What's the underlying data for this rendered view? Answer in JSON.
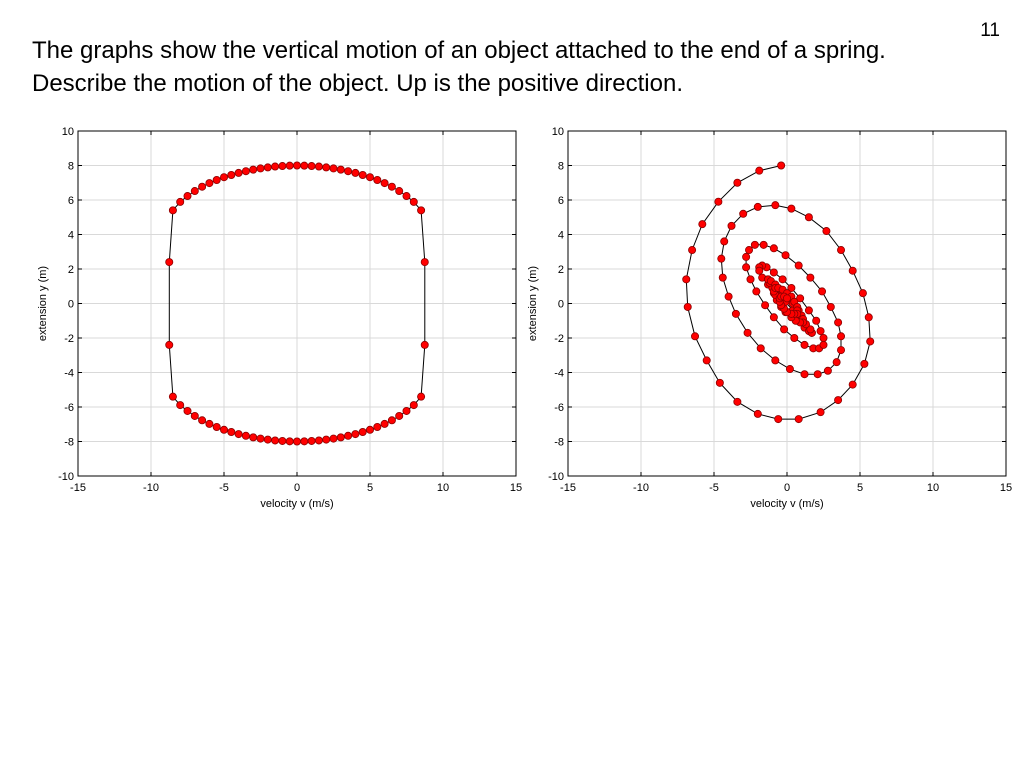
{
  "slide": {
    "number": "11",
    "text": "The graphs show the vertical motion of an object attached to the end of a spring. Describe the motion of the object. Up is the positive direction."
  },
  "colors": {
    "marker": "#ff0000",
    "line": "#000000",
    "grid": "#d9d9d9"
  },
  "chart_data": [
    {
      "type": "scatter",
      "title": "",
      "xlabel": "velocity  v  (m/s)",
      "ylabel": "extension  y  (m)",
      "xlim": [
        -15,
        15
      ],
      "ylim": [
        -10,
        10
      ],
      "xticks": [
        -15,
        -10,
        -5,
        0,
        5,
        10,
        15
      ],
      "yticks": [
        -10,
        -8,
        -6,
        -4,
        -2,
        0,
        2,
        4,
        6,
        8,
        10
      ],
      "grid": true,
      "legend": "none",
      "series": [
        {
          "marker": "filled-circle",
          "connected": true,
          "x": [
            0,
            -0.5,
            -1,
            -1.5,
            -2,
            -2.5,
            -3,
            -3.5,
            -4,
            -4.5,
            -5,
            -5.5,
            -6,
            -6.5,
            -7,
            -7.5,
            -8,
            -8.5,
            -8.75,
            -8.75,
            -8.5,
            -8,
            -7.5,
            -7,
            -6.5,
            -6,
            -5.5,
            -5,
            -4.5,
            -4,
            -3.5,
            -3,
            -2.5,
            -2,
            -1.5,
            -1,
            -0.5,
            0,
            0.5,
            1,
            1.5,
            2,
            2.5,
            3,
            3.5,
            4,
            4.5,
            5,
            5.5,
            6,
            6.5,
            7,
            7.5,
            8,
            8.5,
            8.75,
            8.75,
            8.5,
            8,
            7.5,
            7,
            6.5,
            6,
            5.5,
            5,
            4.5,
            4,
            3.5,
            3,
            2.5,
            2,
            1.5,
            1,
            0.5
          ],
          "y": [
            8,
            7.99,
            7.97,
            7.94,
            7.89,
            7.83,
            7.76,
            7.67,
            7.57,
            7.45,
            7.32,
            7.16,
            6.98,
            6.77,
            6.52,
            6.23,
            5.89,
            5.4,
            2.4,
            -2.4,
            -5.4,
            -5.89,
            -6.23,
            -6.52,
            -6.77,
            -6.98,
            -7.16,
            -7.32,
            -7.45,
            -7.57,
            -7.67,
            -7.76,
            -7.83,
            -7.89,
            -7.94,
            -7.97,
            -7.99,
            -8,
            -7.99,
            -7.97,
            -7.94,
            -7.89,
            -7.83,
            -7.76,
            -7.67,
            -7.57,
            -7.45,
            -7.32,
            -7.16,
            -6.98,
            -6.77,
            -6.52,
            -6.23,
            -5.89,
            -5.4,
            -2.4,
            2.4,
            5.4,
            5.89,
            6.23,
            6.52,
            6.77,
            6.98,
            7.16,
            7.32,
            7.45,
            7.57,
            7.67,
            7.76,
            7.83,
            7.89,
            7.94,
            7.97,
            7.99
          ]
        }
      ]
    },
    {
      "type": "scatter",
      "title": "",
      "xlabel": "velocity  v  (m/s)",
      "ylabel": "extension  y  (m)",
      "xlim": [
        -15,
        15
      ],
      "ylim": [
        -10,
        10
      ],
      "xticks": [
        -15,
        -10,
        -5,
        0,
        5,
        10,
        15
      ],
      "yticks": [
        -10,
        -8,
        -6,
        -4,
        -2,
        0,
        2,
        4,
        6,
        8,
        10
      ],
      "grid": true,
      "legend": "none",
      "series": [
        {
          "marker": "filled-circle",
          "connected": true,
          "x": [
            -0.4,
            -1.9,
            -3.4,
            -4.7,
            -5.8,
            -6.5,
            -6.9,
            -6.8,
            -6.3,
            -5.5,
            -4.6,
            -3.4,
            -2.0,
            -0.6,
            0.8,
            2.3,
            3.5,
            4.5,
            5.3,
            5.7,
            5.6,
            5.2,
            4.5,
            3.7,
            2.7,
            1.5,
            0.3,
            -0.8,
            -2.0,
            -3.0,
            -3.8,
            -4.3,
            -4.5,
            -4.4,
            -4.0,
            -3.5,
            -2.7,
            -1.8,
            -0.8,
            0.2,
            1.2,
            2.1,
            2.8,
            3.4,
            3.7,
            3.7,
            3.5,
            3.0,
            2.4,
            1.6,
            0.8,
            -0.1,
            -0.9,
            -1.6,
            -2.2,
            -2.6,
            -2.8,
            -2.8,
            -2.5,
            -2.1,
            -1.5,
            -0.9,
            -0.2,
            0.5,
            1.2,
            1.8,
            2.2,
            2.5,
            2.5,
            2.3,
            2.0,
            1.5,
            0.9,
            0.3,
            -0.3,
            -0.9,
            -1.4,
            -1.7,
            -1.9,
            -1.9,
            -1.7,
            -1.3,
            -0.9,
            -0.4,
            0.2,
            0.7,
            1.2,
            1.5,
            1.7,
            1.7,
            1.6,
            1.3,
            0.8,
            0.4,
            -0.1,
            -0.6,
            -1.0,
            -1.2,
            -1.3,
            -1.3,
            -1.1,
            -0.8,
            -0.4,
            0.0,
            0.4,
            0.8,
            1.0,
            1.1,
            1.1,
            0.9,
            0.6,
            0.3,
            -0.1,
            -0.4,
            -0.7,
            -0.8,
            -0.9,
            -0.8,
            -0.6,
            -0.3,
            0.0,
            0.3,
            0.5,
            0.7,
            0.7,
            0.7,
            0.5,
            0.3,
            0.0,
            -0.2,
            -0.4,
            -0.5,
            -0.5,
            -0.4,
            -0.2,
            0.0
          ],
          "y": [
            8,
            7.7,
            7.0,
            5.9,
            4.6,
            3.1,
            1.4,
            -0.2,
            -1.9,
            -3.3,
            -4.6,
            -5.7,
            -6.4,
            -6.7,
            -6.7,
            -6.3,
            -5.6,
            -4.7,
            -3.5,
            -2.2,
            -0.8,
            0.6,
            1.9,
            3.1,
            4.2,
            5.0,
            5.5,
            5.7,
            5.6,
            5.2,
            4.5,
            3.6,
            2.6,
            1.5,
            0.4,
            -0.6,
            -1.7,
            -2.6,
            -3.3,
            -3.8,
            -4.1,
            -4.1,
            -3.9,
            -3.4,
            -2.7,
            -1.9,
            -1.1,
            -0.2,
            0.7,
            1.5,
            2.2,
            2.8,
            3.2,
            3.4,
            3.4,
            3.1,
            2.7,
            2.1,
            1.4,
            0.7,
            -0.1,
            -0.8,
            -1.5,
            -2.0,
            -2.4,
            -2.6,
            -2.6,
            -2.4,
            -2.0,
            -1.6,
            -1.0,
            -0.4,
            0.3,
            0.9,
            1.4,
            1.8,
            2.1,
            2.2,
            2.1,
            1.9,
            1.5,
            1.1,
            0.6,
            0.0,
            -0.5,
            -1.0,
            -1.4,
            -1.6,
            -1.7,
            -1.7,
            -1.5,
            -1.2,
            -0.8,
            -0.4,
            0.1,
            0.5,
            0.9,
            1.2,
            1.4,
            1.4,
            1.3,
            1.1,
            0.8,
            0.4,
            0.0,
            -0.4,
            -0.7,
            -0.9,
            -1.1,
            -1.1,
            -1.0,
            -0.8,
            -0.5,
            -0.2,
            0.2,
            0.5,
            0.7,
            0.9,
            0.9,
            0.8,
            0.6,
            0.4,
            0.1,
            -0.2,
            -0.4,
            -0.6,
            -0.6,
            -0.6,
            -0.5,
            -0.3,
            -0.1,
            0.1,
            0.3,
            0.4,
            0.4,
            0.3
          ]
        }
      ]
    }
  ]
}
